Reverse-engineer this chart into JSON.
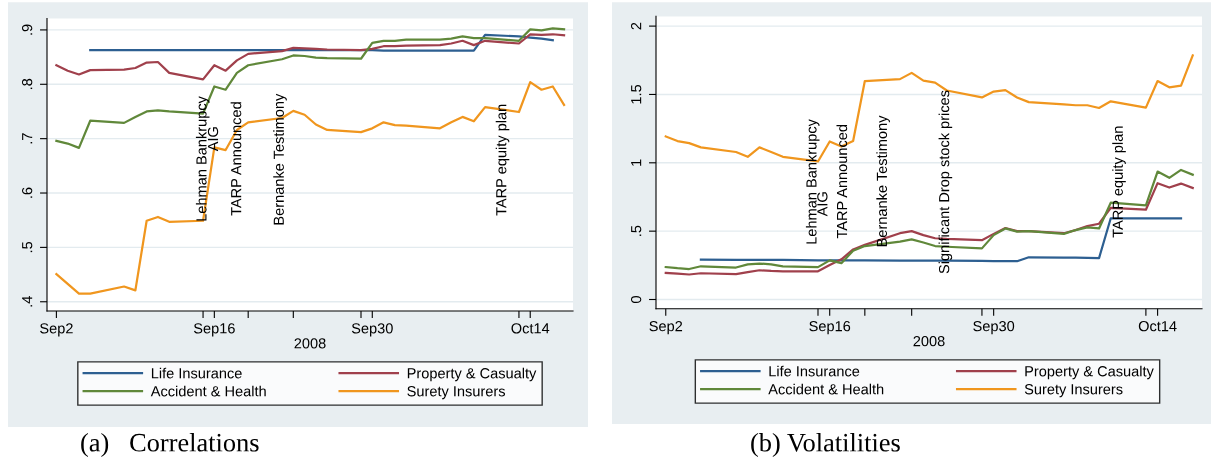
{
  "chart_data": [
    {
      "type": "line",
      "xlabel": "2008",
      "legend": "bottom",
      "grid": "y",
      "x": [
        "2008-09-02",
        "2008-09-03",
        "2008-09-04",
        "2008-09-05",
        "2008-09-08",
        "2008-09-09",
        "2008-09-10",
        "2008-09-11",
        "2008-09-12",
        "2008-09-15",
        "2008-09-16",
        "2008-09-17",
        "2008-09-18",
        "2008-09-19",
        "2008-09-22",
        "2008-09-23",
        "2008-09-24",
        "2008-09-25",
        "2008-09-26",
        "2008-09-29",
        "2008-09-30",
        "2008-10-01",
        "2008-10-02",
        "2008-10-03",
        "2008-10-06",
        "2008-10-07",
        "2008-10-08",
        "2008-10-09",
        "2008-10-10",
        "2008-10-13",
        "2008-10-14",
        "2008-10-15",
        "2008-10-16",
        "2008-10-17"
      ],
      "xlim": [
        "2008-09-01T04:00",
        "2008-10-17T19:00"
      ],
      "xticks": [
        {
          "value": "2008-09-02",
          "label": "Sep2"
        },
        {
          "value": "2008-09-15",
          "label": null
        },
        {
          "value": "2008-09-16",
          "label": "Sep16"
        },
        {
          "value": "2008-09-19",
          "label": null
        },
        {
          "value": "2008-09-23",
          "label": null
        },
        {
          "value": "2008-09-29",
          "label": null
        },
        {
          "value": "2008-09-30",
          "label": "Sep30"
        },
        {
          "value": "2008-10-13",
          "label": null
        },
        {
          "value": "2008-10-14",
          "label": "Oct14"
        }
      ],
      "ylim": [
        0.383,
        0.921
      ],
      "yticks": [
        {
          "value": 0.4,
          "label": ".4"
        },
        {
          "value": 0.5,
          "label": ".5"
        },
        {
          "value": 0.6,
          "label": ".6"
        },
        {
          "value": 0.7,
          "label": ".7"
        },
        {
          "value": 0.8,
          "label": ".8"
        },
        {
          "value": 0.9,
          "label": ".9"
        }
      ],
      "series": [
        {
          "name": "Life Insurance",
          "color": "#2d5f91",
          "values": [
            null,
            null,
            null,
            0.863,
            0.863,
            0.863,
            0.863,
            0.863,
            0.863,
            0.863,
            0.863,
            0.863,
            0.863,
            0.863,
            0.863,
            0.863,
            0.863,
            0.863,
            0.863,
            0.863,
            0.863,
            0.862,
            0.862,
            0.862,
            0.862,
            0.862,
            0.862,
            0.862,
            0.891,
            0.888,
            0.886,
            0.884,
            0.881,
            null
          ]
        },
        {
          "name": "Property & Casualty",
          "color": "#a0404c",
          "values": [
            0.835,
            0.825,
            0.818,
            0.826,
            0.827,
            0.83,
            0.84,
            0.841,
            0.821,
            0.809,
            0.835,
            0.825,
            0.844,
            0.856,
            0.861,
            0.867,
            0.866,
            0.865,
            0.864,
            0.863,
            0.865,
            0.87,
            0.87,
            0.871,
            0.872,
            0.875,
            0.88,
            0.872,
            0.88,
            0.875,
            0.892,
            0.891,
            0.892,
            0.89
          ]
        },
        {
          "name": "Accident & Health",
          "color": "#60883a",
          "values": [
            0.696,
            0.691,
            0.683,
            0.733,
            0.729,
            0.74,
            0.75,
            0.752,
            0.75,
            0.746,
            0.796,
            0.79,
            0.821,
            0.835,
            0.846,
            0.853,
            0.852,
            0.849,
            0.848,
            0.847,
            0.876,
            0.88,
            0.88,
            0.882,
            0.882,
            0.884,
            0.888,
            0.885,
            0.885,
            0.88,
            0.901,
            0.899,
            0.903,
            0.901
          ]
        },
        {
          "name": "Surety Insurers",
          "color": "#f0961e",
          "values": [
            0.451,
            0.433,
            0.415,
            0.415,
            0.428,
            0.421,
            0.549,
            0.556,
            0.547,
            0.549,
            0.684,
            0.679,
            0.716,
            0.73,
            0.738,
            0.751,
            0.744,
            0.726,
            0.716,
            0.712,
            0.719,
            0.73,
            0.725,
            0.724,
            0.719,
            0.73,
            0.74,
            0.732,
            0.758,
            0.749,
            0.804,
            0.79,
            0.796,
            0.762
          ]
        }
      ],
      "annotations": [
        "Lehman Bankrupcy",
        "AIG",
        "TARP Announced",
        "Bernanke Testimony",
        "TARP equity plan",
        "(a)   Correlations"
      ]
    },
    {
      "type": "line",
      "xlabel": "2008",
      "legend": "bottom",
      "grid": "y",
      "x": [
        "2008-09-02",
        "2008-09-03",
        "2008-09-04",
        "2008-09-05",
        "2008-09-08",
        "2008-09-09",
        "2008-09-10",
        "2008-09-11",
        "2008-09-12",
        "2008-09-15",
        "2008-09-16",
        "2008-09-17",
        "2008-09-18",
        "2008-09-19",
        "2008-09-22",
        "2008-09-23",
        "2008-09-24",
        "2008-09-25",
        "2008-09-26",
        "2008-09-29",
        "2008-09-30",
        "2008-10-01",
        "2008-10-02",
        "2008-10-03",
        "2008-10-06",
        "2008-10-07",
        "2008-10-08",
        "2008-10-09",
        "2008-10-10",
        "2008-10-13",
        "2008-10-14",
        "2008-10-15",
        "2008-10-16",
        "2008-10-17"
      ],
      "xlim": [
        "2008-09-01T04:00",
        "2008-10-17T19:00"
      ],
      "xticks": [
        {
          "value": "2008-09-02",
          "label": "Sep2"
        },
        {
          "value": "2008-09-15",
          "label": null
        },
        {
          "value": "2008-09-16",
          "label": "Sep16"
        },
        {
          "value": "2008-09-19",
          "label": null
        },
        {
          "value": "2008-09-23",
          "label": null
        },
        {
          "value": "2008-09-29",
          "label": null
        },
        {
          "value": "2008-09-30",
          "label": "Sep30"
        },
        {
          "value": "2008-10-13",
          "label": null
        },
        {
          "value": "2008-10-14",
          "label": "Oct14"
        }
      ],
      "ylim": [
        -0.068,
        2.071
      ],
      "yticks": [
        0,
        {
          "value": 0.5,
          "label": ".5"
        },
        1,
        1.5,
        2
      ],
      "series": [
        {
          "name": "Life Insurance",
          "color": "#2d5f91",
          "values": [
            null,
            null,
            null,
            0.291,
            0.29,
            0.29,
            0.29,
            0.29,
            0.29,
            0.286,
            0.286,
            0.286,
            0.286,
            0.286,
            0.284,
            0.284,
            0.284,
            0.284,
            0.284,
            0.282,
            0.281,
            0.28,
            0.28,
            0.309,
            0.307,
            0.306,
            0.305,
            0.303,
            0.594,
            0.594,
            0.594,
            0.594,
            0.594,
            null
          ]
        },
        {
          "name": "Property & Casualty",
          "color": "#a0404c",
          "values": [
            0.195,
            0.189,
            0.183,
            0.192,
            0.186,
            0.2,
            0.214,
            0.209,
            0.206,
            0.206,
            0.252,
            0.294,
            0.366,
            0.4,
            0.485,
            0.5,
            0.471,
            0.448,
            0.443,
            0.434,
            0.48,
            0.523,
            0.5,
            0.5,
            0.485,
            0.508,
            0.537,
            0.554,
            0.671,
            0.657,
            0.851,
            0.819,
            0.848,
            0.816
          ]
        },
        {
          "name": "Accident & Health",
          "color": "#60883a",
          "values": [
            0.237,
            0.229,
            0.223,
            0.243,
            0.234,
            0.257,
            0.263,
            0.257,
            0.243,
            0.237,
            0.286,
            0.266,
            0.357,
            0.391,
            0.423,
            0.44,
            0.417,
            0.391,
            0.386,
            0.374,
            0.471,
            0.52,
            0.497,
            0.5,
            0.48,
            0.508,
            0.528,
            0.52,
            0.708,
            0.688,
            0.936,
            0.89,
            0.948,
            0.913
          ]
        },
        {
          "name": "Surety Insurers",
          "color": "#f0961e",
          "values": [
            1.193,
            1.159,
            1.144,
            1.113,
            1.079,
            1.044,
            1.113,
            1.079,
            1.044,
            1.01,
            1.156,
            1.119,
            1.159,
            1.598,
            1.612,
            1.658,
            1.601,
            1.586,
            1.529,
            1.478,
            1.521,
            1.532,
            1.478,
            1.444,
            1.427,
            1.421,
            1.421,
            1.401,
            1.45,
            1.404,
            1.598,
            1.552,
            1.564,
            1.786
          ]
        }
      ],
      "annotations": [
        "Lehman Bankrupcy",
        "AIG",
        "TARP Announced",
        "Bernanke Testimony",
        "Significant Drop stock prices",
        "TARP equity plan",
        "(b) Volatilities"
      ]
    }
  ]
}
